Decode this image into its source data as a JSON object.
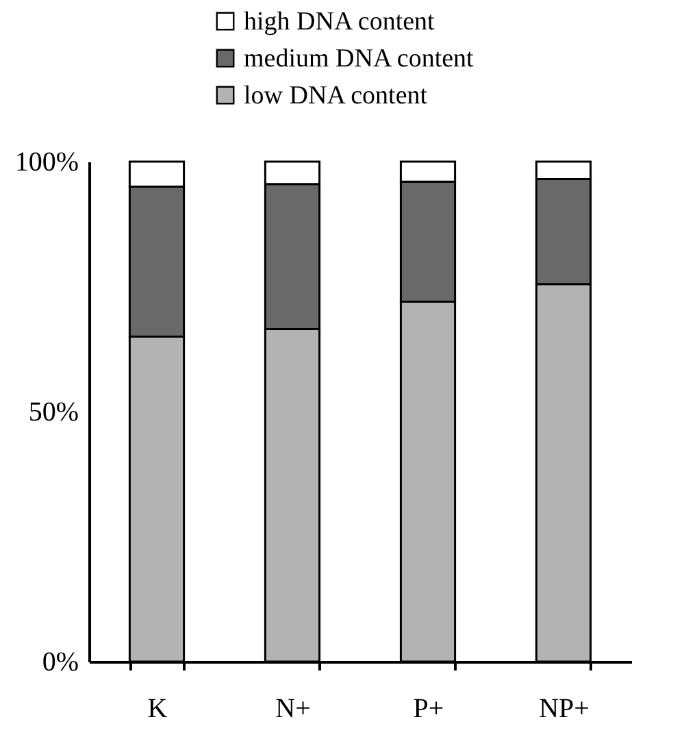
{
  "chart_data": {
    "type": "bar",
    "stacked": true,
    "categories": [
      "K",
      "N+",
      "P+",
      "NP+"
    ],
    "series": [
      {
        "name": "low DNA content",
        "color": "#b3b3b3",
        "values": [
          65,
          66.5,
          72,
          75.5
        ]
      },
      {
        "name": "medium DNA content",
        "color": "#696969",
        "values": [
          30,
          29,
          24,
          21
        ]
      },
      {
        "name": "high DNA content",
        "color": "#ffffff",
        "values": [
          5,
          4.5,
          4,
          3.5
        ]
      }
    ],
    "ylim": [
      0,
      100
    ],
    "yticks": [
      {
        "value": 0,
        "label": "0%"
      },
      {
        "value": 50,
        "label": "50%"
      },
      {
        "value": 100,
        "label": "100%"
      }
    ],
    "grid": false,
    "legend": "top"
  }
}
